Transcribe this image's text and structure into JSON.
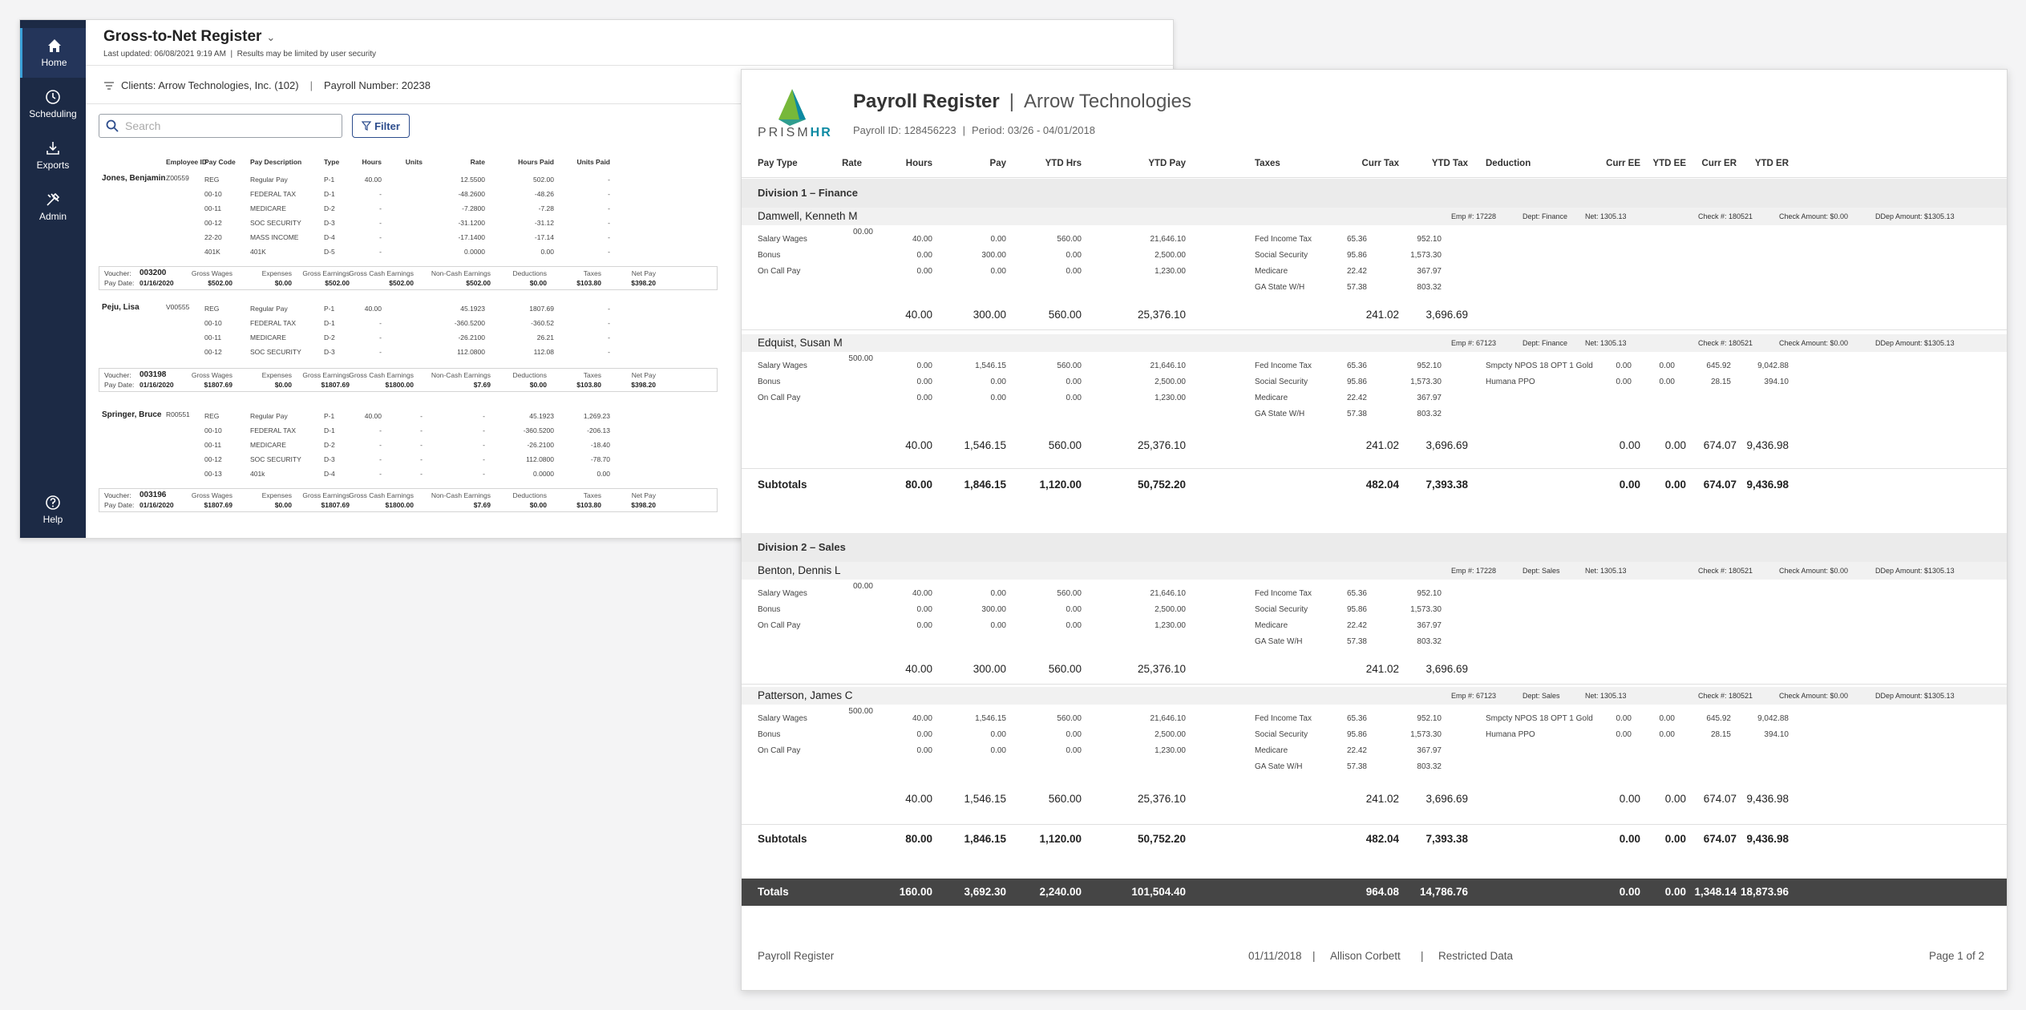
{
  "nav": [
    {
      "label": "Home",
      "icon": "home-icon"
    },
    {
      "label": "Scheduling",
      "icon": "clock-icon"
    },
    {
      "label": "Exports",
      "icon": "download-icon"
    },
    {
      "label": "Admin",
      "icon": "tools-icon"
    },
    {
      "label": "Help",
      "icon": "help-icon"
    }
  ],
  "gtn": {
    "title": "Gross-to-Net Register",
    "updated": "Last updated: 06/08/2021 9:19 AM",
    "security_note": "Results may be limited by user security",
    "client": "Clients: Arrow Technologies, Inc. (102)",
    "payroll_number": "Payroll Number: 20238",
    "search_placeholder": "Search",
    "filter_label": "Filter",
    "columns": [
      "Employee ID",
      "Pay Code",
      "Pay Description",
      "Type",
      "Hours",
      "Units",
      "Rate",
      "Hours Paid",
      "Units Paid"
    ],
    "voucher_labels": {
      "voucher": "Voucher:",
      "pay_date": "Pay Date:",
      "gross_wages": "Gross Wages",
      "expenses": "Expenses",
      "gross_earnings": "Gross Earnings",
      "gross_cash": "Gross Cash Earnings",
      "non_cash": "Non-Cash Earnings",
      "deductions": "Deductions",
      "taxes": "Taxes",
      "net_pay": "Net Pay"
    },
    "employees": [
      {
        "name": "Jones, Benjamin",
        "id": "Z00559",
        "rows": [
          [
            "REG",
            "Regular Pay",
            "P-1",
            "40.00",
            "",
            "12.5500",
            "502.00",
            "-"
          ],
          [
            "00-10",
            "FEDERAL TAX",
            "D-1",
            "-",
            "",
            "-48.2600",
            "-48.26",
            "-"
          ],
          [
            "00-11",
            "MEDICARE",
            "D-2",
            "-",
            "",
            "-7.2800",
            "-7.28",
            "-"
          ],
          [
            "00-12",
            "SOC SECURITY",
            "D-3",
            "-",
            "",
            "-31.1200",
            "-31.12",
            "-"
          ],
          [
            "22-20",
            "MASS INCOME",
            "D-4",
            "-",
            "",
            "-17.1400",
            "-17.14",
            "-"
          ],
          [
            "401K",
            "401K",
            "D-5",
            "-",
            "",
            "0.0000",
            "0.00",
            "-"
          ]
        ],
        "voucher": {
          "voucher": "003200",
          "pay_date": "01/16/2020",
          "gross_wages": "$502.00",
          "expenses": "$0.00",
          "gross_earnings": "$502.00",
          "gross_cash": "$502.00",
          "non_cash": "$502.00",
          "deductions": "$0.00",
          "taxes": "$103.80",
          "net_pay": "$398.20"
        }
      },
      {
        "name": "Peju, Lisa",
        "id": "V00555",
        "rows": [
          [
            "REG",
            "Regular Pay",
            "P-1",
            "40.00",
            "",
            "45.1923",
            "1807.69",
            "-"
          ],
          [
            "00-10",
            "FEDERAL TAX",
            "D-1",
            "-",
            "",
            "-360.5200",
            "-360.52",
            "-"
          ],
          [
            "00-11",
            "MEDICARE",
            "D-2",
            "-",
            "",
            "-26.2100",
            "26.21",
            "-"
          ],
          [
            "00-12",
            "SOC SECURITY",
            "D-3",
            "-",
            "",
            "112.0800",
            "112.08",
            "-"
          ]
        ],
        "voucher": {
          "voucher": "003198",
          "pay_date": "01/16/2020",
          "gross_wages": "$1807.69",
          "expenses": "$0.00",
          "gross_earnings": "$1807.69",
          "gross_cash": "$1800.00",
          "non_cash": "$7.69",
          "deductions": "$0.00",
          "taxes": "$103.80",
          "net_pay": "$398.20"
        }
      },
      {
        "name": "Springer, Bruce",
        "id": "R00551",
        "rows": [
          [
            "REG",
            "Regular Pay",
            "P-1",
            "40.00",
            "-",
            "-",
            "45.1923",
            "1,269.23"
          ],
          [
            "00-10",
            "FEDERAL TAX",
            "D-1",
            "-",
            "-",
            "-",
            "-360.5200",
            "-206.13"
          ],
          [
            "00-11",
            "MEDICARE",
            "D-2",
            "-",
            "-",
            "-",
            "-26.2100",
            "-18.40"
          ],
          [
            "00-12",
            "SOC SECURITY",
            "D-3",
            "-",
            "-",
            "-",
            "112.0800",
            "-78.70"
          ],
          [
            "00-13",
            "401k",
            "D-4",
            "-",
            "-",
            "-",
            "0.0000",
            "0.00"
          ]
        ],
        "voucher": {
          "voucher": "003196",
          "pay_date": "01/16/2020",
          "gross_wages": "$1807.69",
          "expenses": "$0.00",
          "gross_earnings": "$1807.69",
          "gross_cash": "$1800.00",
          "non_cash": "$7.69",
          "deductions": "$0.00",
          "taxes": "$103.80",
          "net_pay": "$398.20"
        }
      }
    ]
  },
  "report": {
    "logo_text_1": "PRISM",
    "logo_text_2": "HR",
    "title": "Payroll Register",
    "company": "Arrow Technologies",
    "payroll_id": "Payroll ID: 128456223",
    "period": "Period: 03/26 - 04/01/2018",
    "columns": [
      "Pay Type",
      "Rate",
      "Hours",
      "Pay",
      "YTD Hrs",
      "YTD Pay",
      "Taxes",
      "Curr Tax",
      "YTD Tax",
      "Deduction",
      "Curr EE",
      "YTD EE",
      "Curr ER",
      "YTD ER"
    ],
    "divisions": [
      {
        "name": "Division 1 – Finance",
        "employees": [
          {
            "name": "Damwell, Kenneth M",
            "meta": [
              "Emp #:  17228",
              "Dept: Finance",
              "Net: 1305.13",
              "Check #: 180521",
              "Check Amount: $0.00",
              "DDep Amount: $1305.13"
            ],
            "rate": "00.00",
            "pay_rows": [
              [
                "Salary Wages",
                "40.00",
                "0.00",
                "560.00",
                "21,646.10"
              ],
              [
                "Bonus",
                "0.00",
                "300.00",
                "0.00",
                "2,500.00"
              ],
              [
                "On Call Pay",
                "0.00",
                "0.00",
                "0.00",
                "1,230.00"
              ]
            ],
            "tax_rows": [
              [
                "Fed Income Tax",
                "65.36",
                "952.10"
              ],
              [
                "Social Security",
                "95.86",
                "1,573.30"
              ],
              [
                "Medicare",
                "22.42",
                "367.97"
              ],
              [
                "GA State W/H",
                "57.38",
                "803.32"
              ]
            ],
            "ded_rows": [],
            "totals": [
              "40.00",
              "300.00",
              "560.00",
              "25,376.10",
              "241.02",
              "3,696.69",
              "",
              "",
              "",
              ""
            ]
          },
          {
            "name": "Edquist, Susan M",
            "meta": [
              "Emp #:  67123",
              "Dept: Finance",
              "Net: 1305.13",
              "Check #: 180521",
              "Check Amount: $0.00",
              "DDep Amount: $1305.13"
            ],
            "rate": "500.00",
            "pay_rows": [
              [
                "Salary Wages",
                "0.00",
                "1,546.15",
                "560.00",
                "21,646.10"
              ],
              [
                "Bonus",
                "0.00",
                "0.00",
                "0.00",
                "2,500.00"
              ],
              [
                "On Call Pay",
                "0.00",
                "0.00",
                "0.00",
                "1,230.00"
              ]
            ],
            "tax_rows": [
              [
                "Fed Income Tax",
                "65.36",
                "952.10"
              ],
              [
                "Social Security",
                "95.86",
                "1,573.30"
              ],
              [
                "Medicare",
                "22.42",
                "367.97"
              ],
              [
                "GA State W/H",
                "57.38",
                "803.32"
              ]
            ],
            "ded_rows": [
              [
                "Smpcty NPOS 18 OPT 1 Gold",
                "0.00",
                "0.00",
                "645.92",
                "9,042.88"
              ],
              [
                "Humana PPO",
                "0.00",
                "0.00",
                "28.15",
                "394.10"
              ]
            ],
            "totals": [
              "40.00",
              "1,546.15",
              "560.00",
              "25,376.10",
              "241.02",
              "3,696.69",
              "0.00",
              "0.00",
              "674.07",
              "9,436.98"
            ]
          }
        ],
        "subtotals": [
          "80.00",
          "1,846.15",
          "1,120.00",
          "50,752.20",
          "482.04",
          "7,393.38",
          "0.00",
          "0.00",
          "674.07",
          "9,436.98"
        ]
      },
      {
        "name": "Division 2 – Sales",
        "employees": [
          {
            "name": "Benton, Dennis L",
            "meta": [
              "Emp #:  17228",
              "Dept: Sales",
              "Net: 1305.13",
              "Check #: 180521",
              "Check Amount: $0.00",
              "DDep Amount: $1305.13"
            ],
            "rate": "00.00",
            "pay_rows": [
              [
                "Salary Wages",
                "40.00",
                "0.00",
                "560.00",
                "21,646.10"
              ],
              [
                "Bonus",
                "0.00",
                "300.00",
                "0.00",
                "2,500.00"
              ],
              [
                "On Call Pay",
                "0.00",
                "0.00",
                "0.00",
                "1,230.00"
              ]
            ],
            "tax_rows": [
              [
                "Fed Income Tax",
                "65.36",
                "952.10"
              ],
              [
                "Social Security",
                "95.86",
                "1,573.30"
              ],
              [
                "Medicare",
                "22.42",
                "367.97"
              ],
              [
                "GA Sate W/H",
                "57.38",
                "803.32"
              ]
            ],
            "ded_rows": [],
            "totals": [
              "40.00",
              "300.00",
              "560.00",
              "25,376.10",
              "241.02",
              "3,696.69",
              "",
              "",
              "",
              ""
            ]
          },
          {
            "name": "Patterson, James C",
            "meta": [
              "Emp #:  67123",
              "Dept: Sales",
              "Net: 1305.13",
              "Check #: 180521",
              "Check Amount: $0.00",
              "DDep Amount: $1305.13"
            ],
            "rate": "500.00",
            "pay_rows": [
              [
                "Salary Wages",
                "40.00",
                "1,546.15",
                "560.00",
                "21,646.10"
              ],
              [
                "Bonus",
                "0.00",
                "0.00",
                "0.00",
                "2,500.00"
              ],
              [
                "On Call Pay",
                "0.00",
                "0.00",
                "0.00",
                "1,230.00"
              ]
            ],
            "tax_rows": [
              [
                "Fed Income Tax",
                "65.36",
                "952.10"
              ],
              [
                "Social Security",
                "95.86",
                "1,573.30"
              ],
              [
                "Medicare",
                "22.42",
                "367.97"
              ],
              [
                "GA Sate W/H",
                "57.38",
                "803.32"
              ]
            ],
            "ded_rows": [
              [
                "Smpcty NPOS 18 OPT 1 Gold",
                "0.00",
                "0.00",
                "645.92",
                "9,042.88"
              ],
              [
                "Humana PPO",
                "0.00",
                "0.00",
                "28.15",
                "394.10"
              ]
            ],
            "totals": [
              "40.00",
              "1,546.15",
              "560.00",
              "25,376.10",
              "241.02",
              "3,696.69",
              "0.00",
              "0.00",
              "674.07",
              "9,436.98"
            ]
          }
        ],
        "subtotals": [
          "80.00",
          "1,846.15",
          "1,120.00",
          "50,752.20",
          "482.04",
          "7,393.38",
          "0.00",
          "0.00",
          "674.07",
          "9,436.98"
        ]
      }
    ],
    "subtotals_label": "Subtotals",
    "totals_label": "Totals",
    "totals": [
      "160.00",
      "3,692.30",
      "2,240.00",
      "101,504.40",
      "964.08",
      "14,786.76",
      "0.00",
      "0.00",
      "1,348.14",
      "18,873.96"
    ],
    "footer": {
      "left": "Payroll Register",
      "date": "01/11/2018",
      "user": "Allison Corbett",
      "restricted": "Restricted Data",
      "page": "Page 1 of 2"
    }
  },
  "colors": {
    "sidebar": "#1c2a45",
    "accent": "#2c4c8c",
    "totals_bar": "#454545",
    "brand": "#0d8aa3"
  }
}
